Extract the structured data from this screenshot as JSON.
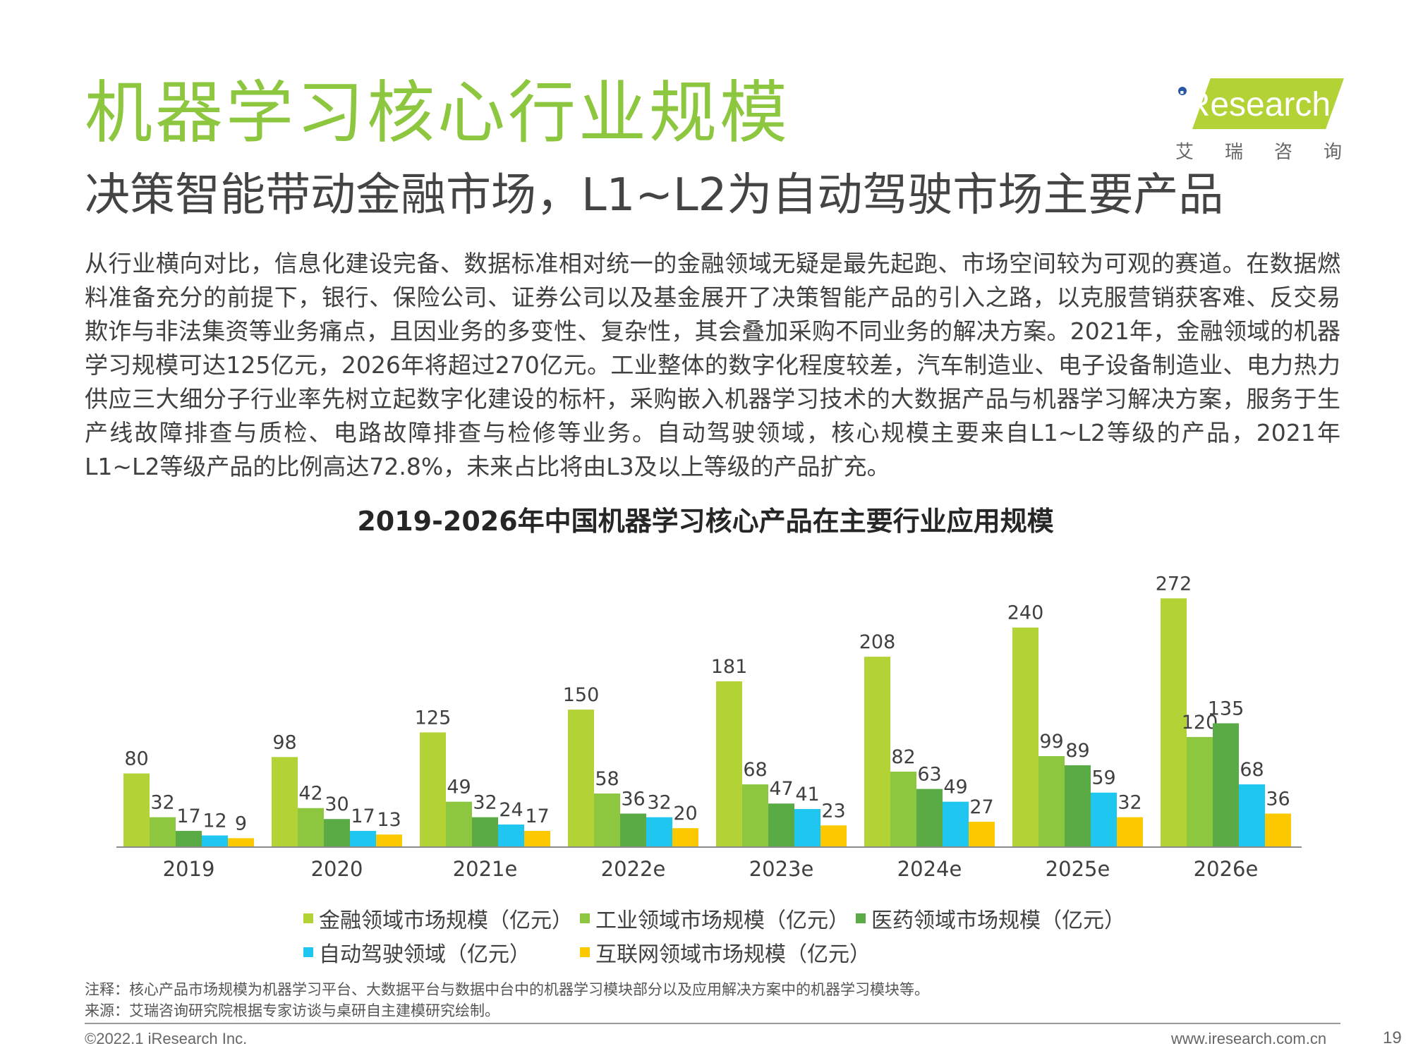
{
  "title": "机器学习核心行业规模",
  "subtitle": "决策智能带动金融市场，L1~L2为自动驾驶市场主要产品",
  "logo": {
    "brand": "iResearch",
    "sub": "艾瑞咨询"
  },
  "body_text": "从行业横向对比，信息化建设完备、数据标准相对统一的金融领域无疑是最先起跑、市场空间较为可观的赛道。在数据燃料准备充分的前提下，银行、保险公司、证券公司以及基金展开了决策智能产品的引入之路，以克服营销获客难、反交易欺诈与非法集资等业务痛点，且因业务的多变性、复杂性，其会叠加采购不同业务的解决方案。2021年，金融领域的机器学习规模可达125亿元，2026年将超过270亿元。工业整体的数字化程度较差，汽车制造业、电子设备制造业、电力热力供应三大细分子行业率先树立起数字化建设的标杆，采购嵌入机器学习技术的大数据产品与机器学习解决方案，服务于生产线故障排查与质检、电路故障排查与检修等业务。自动驾驶领域，核心规模主要来自L1~L2等级的产品，2021年L1~L2等级产品的比例高达72.8%，未来占比将由L3及以上等级的产品扩充。",
  "chart_data": {
    "type": "bar",
    "title": "2019-2026年中国机器学习核心产品在主要行业应用规模",
    "categories": [
      "2019",
      "2020",
      "2021e",
      "2022e",
      "2023e",
      "2024e",
      "2025e",
      "2026e"
    ],
    "series": [
      {
        "name": "金融领域市场规模（亿元）",
        "color": "#b2d235",
        "values": [
          80,
          98,
          125,
          150,
          181,
          208,
          240,
          272
        ],
        "labels": [
          "80",
          "98",
          "125",
          "150",
          "181",
          "208",
          "240",
          "272"
        ]
      },
      {
        "name": "工业领域市场规模（亿元）",
        "color": "#8dc63f",
        "values": [
          32,
          42,
          49,
          58,
          68,
          82,
          99,
          120
        ],
        "labels": [
          "32",
          "42",
          "49",
          "58",
          "68",
          "82",
          "99",
          "120"
        ]
      },
      {
        "name": "医药领域市场规模（亿元）",
        "color": "#5aab46",
        "values": [
          17,
          30,
          32,
          36,
          47,
          63,
          89,
          135
        ],
        "labels": [
          "17",
          "30",
          "32",
          "36",
          "47",
          "63",
          "89",
          "135"
        ]
      },
      {
        "name": "自动驾驶领域（亿元）",
        "color": "#1ec6f0",
        "values": [
          12,
          17,
          24,
          32,
          41,
          49,
          59,
          68
        ],
        "labels": [
          "12",
          "17",
          "24",
          "32",
          "41",
          "49",
          "59",
          "68"
        ]
      },
      {
        "name": "互联网领域市场规模（亿元）",
        "color": "#fcc800",
        "values": [
          9,
          13,
          17,
          20,
          23,
          27,
          32,
          36
        ],
        "labels": [
          "9",
          "13",
          "17",
          "20",
          "23",
          "27",
          "32",
          "36"
        ]
      }
    ],
    "ylim": [
      0,
      280
    ],
    "legend": "bottom",
    "grid": false
  },
  "note": "注释：核心产品市场规模为机器学习平台、大数据平台与数据中台中的机器学习模块部分以及应用解决方案中的机器学习模块等。",
  "source": "来源：艾瑞咨询研究院根据专家访谈与桌研自主建模研究绘制。",
  "footer": {
    "copyright": "©2022.1 iResearch Inc.",
    "url": "www.iresearch.com.cn",
    "page": "19"
  }
}
